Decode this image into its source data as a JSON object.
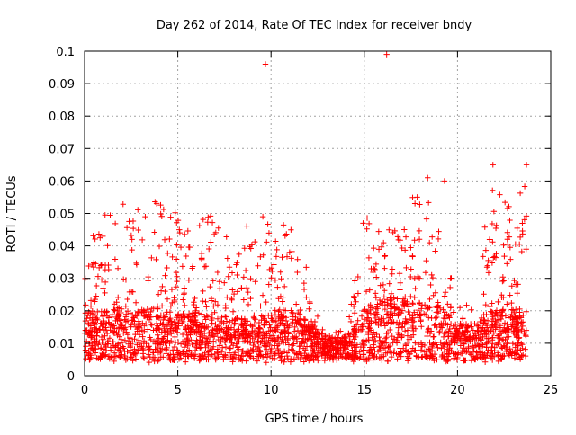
{
  "chart_data": {
    "type": "scatter",
    "title": "Day 262 of 2014, Rate Of TEC Index for receiver bndy",
    "xlabel": "GPS time / hours",
    "ylabel": "ROTI / TECUs",
    "xlim": [
      0,
      25
    ],
    "ylim": [
      0,
      0.1
    ],
    "x_ticks": [
      "0",
      "5",
      "10",
      "15",
      "20",
      "25"
    ],
    "y_ticks": [
      "0",
      "0.01",
      "0.02",
      "0.03",
      "0.04",
      "0.05",
      "0.06",
      "0.07",
      "0.08",
      "0.09",
      "0.1"
    ],
    "grid": true,
    "marker": "+",
    "color": "#ff0000",
    "envelope": {
      "hours": [
        0,
        1,
        2,
        3,
        4,
        5,
        6,
        7,
        8,
        9,
        10,
        11,
        12,
        13,
        14,
        15,
        16,
        17,
        18,
        19,
        20,
        21,
        22,
        23,
        23.7
      ],
      "median": [
        0.013,
        0.014,
        0.014,
        0.014,
        0.014,
        0.013,
        0.013,
        0.013,
        0.012,
        0.012,
        0.013,
        0.015,
        0.011,
        0.008,
        0.008,
        0.014,
        0.016,
        0.016,
        0.017,
        0.015,
        0.011,
        0.011,
        0.014,
        0.013,
        0.013
      ],
      "max": [
        0.04,
        0.05,
        0.054,
        0.054,
        0.054,
        0.05,
        0.048,
        0.05,
        0.044,
        0.049,
        0.05,
        0.048,
        0.032,
        0.012,
        0.015,
        0.052,
        0.045,
        0.05,
        0.06,
        0.055,
        0.02,
        0.03,
        0.065,
        0.048,
        0.064
      ]
    },
    "outliers": [
      [
        9.7,
        0.096
      ],
      [
        16.2,
        0.099
      ],
      [
        21.9,
        0.065
      ],
      [
        23.7,
        0.065
      ],
      [
        18.4,
        0.061
      ],
      [
        19.3,
        0.06
      ]
    ]
  }
}
